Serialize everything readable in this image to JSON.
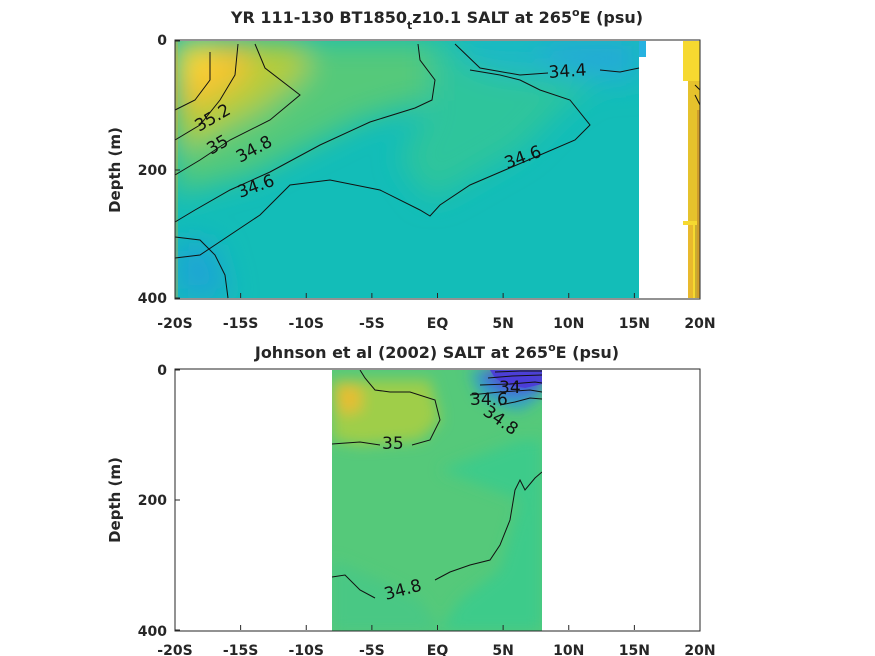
{
  "chart_data": [
    {
      "type": "heatmap",
      "title": {
        "pre": "YR 111-130 BT1850",
        "sub": "t",
        "mid": "z10.1 SALT at 265",
        "sup": "o",
        "post": "E (psu)"
      },
      "xlabel": "",
      "ylabel": "Depth (m)",
      "x_ticks": [
        "-20S",
        "-15S",
        "-10S",
        "-5S",
        "EQ",
        "5N",
        "10N",
        "15N",
        "20N"
      ],
      "x_tick_values": [
        -20,
        -15,
        -10,
        -5,
        0,
        5,
        10,
        15,
        20
      ],
      "y_ticks": [
        "0",
        "200",
        "400"
      ],
      "y_tick_values": [
        0,
        200,
        400
      ],
      "xlim": [
        -20,
        20
      ],
      "ylim": [
        400,
        0
      ],
      "units": "psu",
      "contour_labels": [
        {
          "text": "35.2",
          "x": -18.6,
          "y": 115
        },
        {
          "text": "35",
          "x": -18.0,
          "y": 152
        },
        {
          "text": "34.8",
          "x": -15.3,
          "y": 158
        },
        {
          "text": "34.6",
          "x": -13.3,
          "y": 214
        },
        {
          "text": "34.6",
          "x": 3.5,
          "y": 180
        },
        {
          "text": "34.4",
          "x": 8.8,
          "y": 47
        }
      ]
    },
    {
      "type": "heatmap",
      "title": {
        "pre": "Johnson et al (2002) SALT at 265",
        "sub": "",
        "mid": "",
        "sup": "o",
        "post": "E (psu)"
      },
      "xlabel": "",
      "ylabel": "Depth (m)",
      "x_ticks": [
        "-20S",
        "-15S",
        "-10S",
        "-5S",
        "EQ",
        "5N",
        "10N",
        "15N",
        "20N"
      ],
      "x_tick_values": [
        -20,
        -15,
        -10,
        -5,
        0,
        5,
        10,
        15,
        20
      ],
      "y_ticks": [
        "0",
        "200",
        "400"
      ],
      "y_tick_values": [
        0,
        200,
        400
      ],
      "xlim": [
        -20,
        20
      ],
      "ylim": [
        400,
        0
      ],
      "units": "psu",
      "data_extent_x": [
        -8,
        8
      ],
      "contour_labels": [
        {
          "text": "35",
          "x": -3.1,
          "y": 112
        },
        {
          "text": "34.6",
          "x": 4.2,
          "y": 48
        },
        {
          "text": "34.8",
          "x": 5.2,
          "y": 82
        },
        {
          "text": "34",
          "x": 5.6,
          "y": 32
        },
        {
          "text": "34.8",
          "x": -2.3,
          "y": 335
        }
      ]
    }
  ]
}
